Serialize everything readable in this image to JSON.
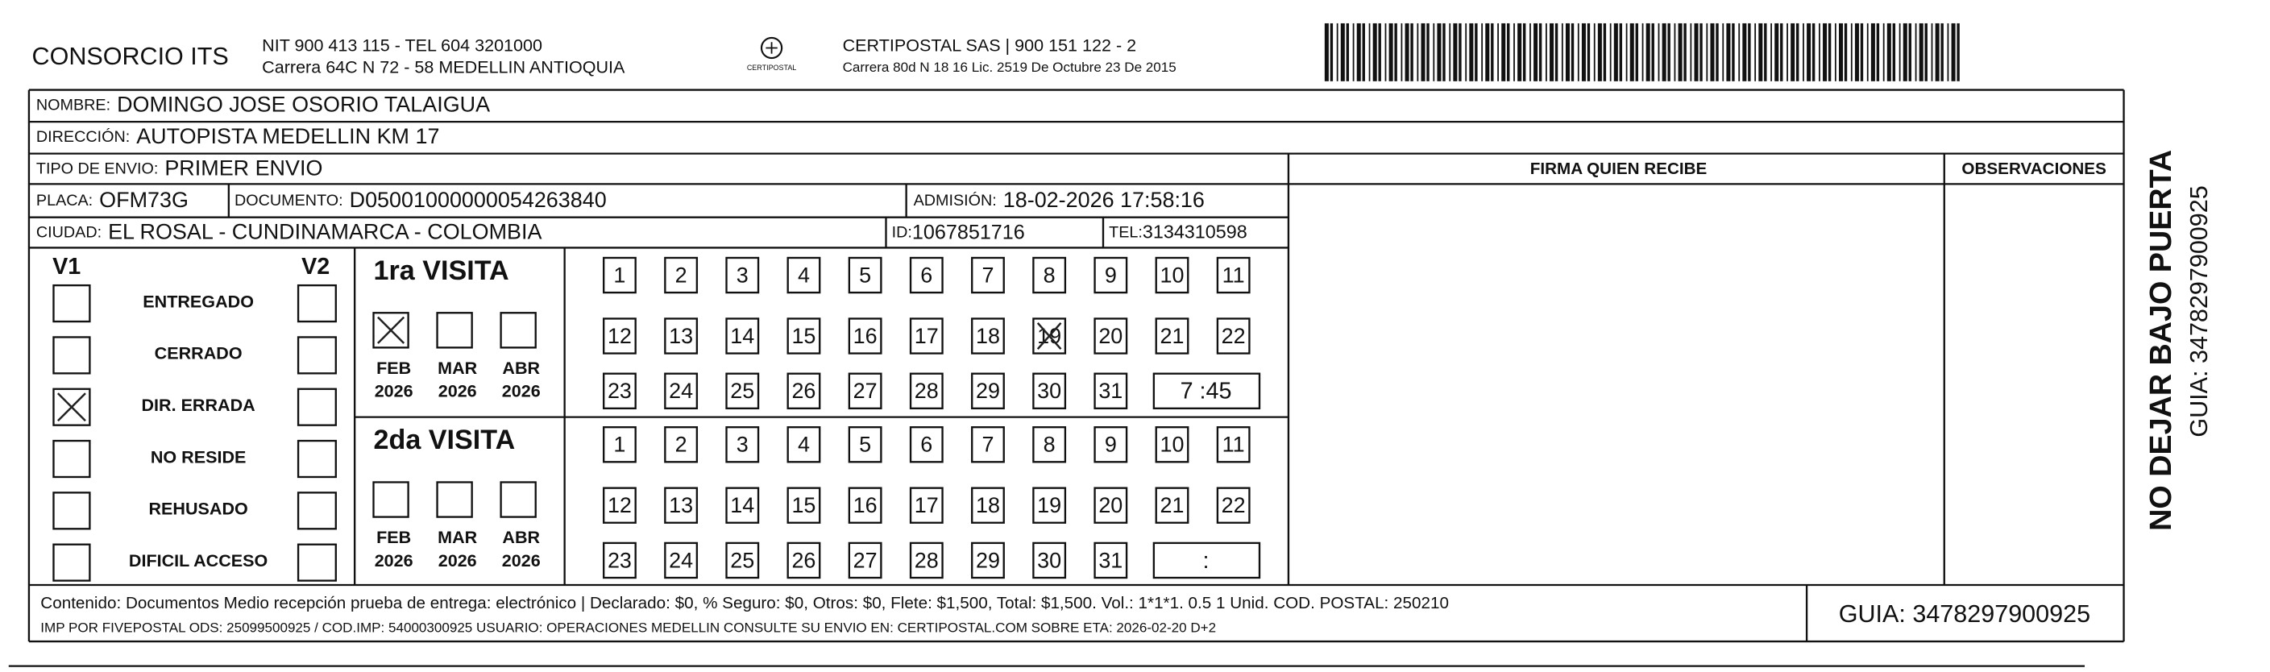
{
  "header": {
    "company": "CONSORCIO ITS",
    "nit": "NIT 900 413 115 - TEL 604 3201000",
    "address": "Carrera 64C N 72 - 58 MEDELLIN ANTIOQUIA",
    "logo": "CERTIPOSTAL",
    "carrier": "CERTIPOSTAL SAS | 900 151 122 - 2",
    "carrier_address": "Carrera 80d N 18 16  Lic. 2519 De Octubre 23 De 2015"
  },
  "fields": {
    "nombre": {
      "label": "NOMBRE:",
      "value": "DOMINGO JOSE OSORIO TALAIGUA"
    },
    "direccion": {
      "label": "DIRECCIÓN:",
      "value": "AUTOPISTA MEDELLIN KM 17"
    },
    "tipo": {
      "label": "TIPO DE ENVIO:",
      "value": "PRIMER ENVIO"
    },
    "placa": {
      "label": "PLACA:",
      "value": "OFM73G"
    },
    "documento": {
      "label": "DOCUMENTO:",
      "value": "D05001000000054263840"
    },
    "admision": {
      "label": "ADMISIÓN:",
      "value": "18-02-2026 17:58:16"
    },
    "ciudad": {
      "label": "CIUDAD:",
      "value": "EL ROSAL - CUNDINAMARCA - COLOMBIA"
    },
    "id": {
      "label": "ID:",
      "value": "1067851716"
    },
    "tel": {
      "label": "TEL:",
      "value": "3134310598"
    }
  },
  "columns": {
    "firma": "FIRMA QUIEN RECIBE",
    "observaciones": "OBSERVACIONES"
  },
  "status": {
    "v1": "V1",
    "v2": "V2",
    "reasons": [
      "ENTREGADO",
      "CERRADO",
      "DIR. ERRADA",
      "NO RESIDE",
      "REHUSADO",
      "DIFICIL ACCESO"
    ],
    "v1_checked": [
      false,
      false,
      true,
      false,
      false,
      false
    ],
    "v2_checked": [
      false,
      false,
      false,
      false,
      false,
      false
    ]
  },
  "visits": [
    {
      "title": "1ra VISITA",
      "months": [
        {
          "month": "FEB",
          "year": "2026"
        },
        {
          "month": "MAR",
          "year": "2026"
        },
        {
          "month": "ABR",
          "year": "2026"
        }
      ],
      "checked_months": [
        0
      ],
      "days": [
        1,
        2,
        3,
        4,
        5,
        6,
        7,
        8,
        9,
        10,
        11,
        12,
        13,
        14,
        15,
        16,
        17,
        18,
        19,
        20,
        21,
        22,
        23,
        24,
        25,
        26,
        27,
        28,
        29,
        30,
        31
      ],
      "checked_days": [
        19
      ],
      "time": "7 :45"
    },
    {
      "title": "2da VISITA",
      "months": [
        {
          "month": "FEB",
          "year": "2026"
        },
        {
          "month": "MAR",
          "year": "2026"
        },
        {
          "month": "ABR",
          "year": "2026"
        }
      ],
      "checked_months": [],
      "days": [
        1,
        2,
        3,
        4,
        5,
        6,
        7,
        8,
        9,
        10,
        11,
        12,
        13,
        14,
        15,
        16,
        17,
        18,
        19,
        20,
        21,
        22,
        23,
        24,
        25,
        26,
        27,
        28,
        29,
        30,
        31
      ],
      "checked_days": [],
      "time": ":"
    }
  ],
  "footer": {
    "contents": "Contenido: Documentos Medio recepción prueba de entrega: electrónico | Declarado: $0, % Seguro: $0, Otros: $0, Flete: $1,500, Total: $1,500. Vol.: 1*1*1. 0.5  1 Unid. COD. POSTAL: 250210",
    "imp": "IMP POR FIVEPOSTAL ODS: 25099500925 / COD.IMP: 54000300925 USUARIO: OPERACIONES MEDELLIN CONSULTE SU ENVIO EN: CERTIPOSTAL.COM SOBRE ETA: 2026-02-20 D+2",
    "guia": "GUIA: 3478297900925"
  },
  "side": {
    "warning": "NO DEJAR BAJO PUERTA",
    "guia": "GUIA: 3478297900925"
  }
}
